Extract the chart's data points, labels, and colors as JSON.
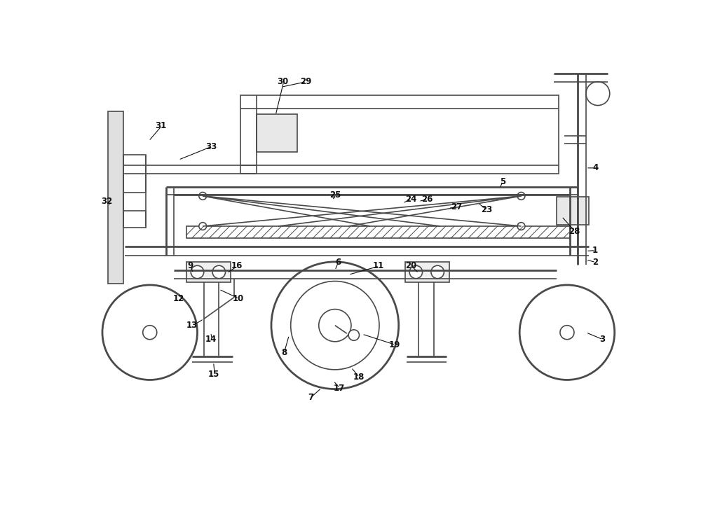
{
  "bg_color": "#ffffff",
  "lc": "#4a4a4a",
  "lw": 1.2,
  "hlw": 2.0,
  "fig_w": 10.0,
  "fig_h": 7.54,
  "xmin": 0,
  "xmax": 10,
  "ymin": 0,
  "ymax": 7.54
}
